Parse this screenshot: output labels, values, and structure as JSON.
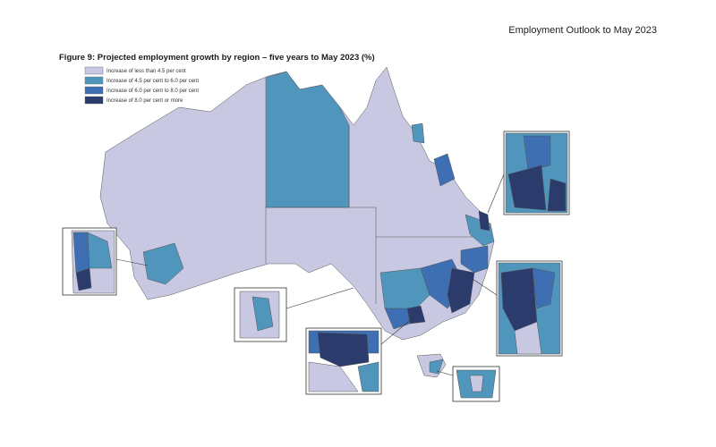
{
  "header": "Employment Outlook to May 2023",
  "figure": {
    "title": "Figure 9: Projected employment growth by region – five years to May 2023 (%)",
    "legend": [
      {
        "label": "Increase of less than 4.5 per cent",
        "color": "#c8c8e2"
      },
      {
        "label": "Increase of 4.5 per cent to 6.0 per cent",
        "color": "#5096bc"
      },
      {
        "label": "Increase of 6.0 per cent to 8.0 per cent",
        "color": "#3d6fb2"
      },
      {
        "label": "Increase of 8.0 per cent or more",
        "color": "#2b3c6c"
      }
    ]
  }
}
